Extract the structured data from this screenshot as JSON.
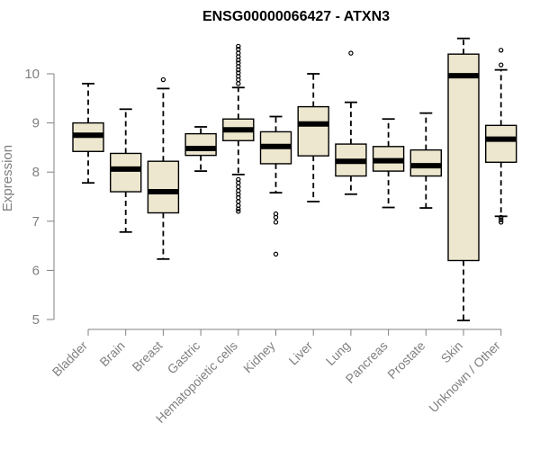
{
  "chart_data": {
    "type": "boxplot",
    "title": "ENSG00000066427 - ATXN3",
    "xlabel": "",
    "ylabel": "Expression",
    "ylim": [
      5,
      10.6
    ],
    "yticks": [
      5,
      6,
      7,
      8,
      9,
      10
    ],
    "box_color": "#ede7cf",
    "series": [
      {
        "name": "Bladder",
        "whisker_low": 7.78,
        "q1": 8.42,
        "median": 8.75,
        "q3": 9.0,
        "whisker_high": 9.8,
        "outliers": []
      },
      {
        "name": "Brain",
        "whisker_low": 6.78,
        "q1": 7.6,
        "median": 8.06,
        "q3": 8.38,
        "whisker_high": 9.28,
        "outliers": []
      },
      {
        "name": "Breast",
        "whisker_low": 6.23,
        "q1": 7.17,
        "median": 7.6,
        "q3": 8.22,
        "whisker_high": 9.7,
        "outliers": [
          9.88
        ]
      },
      {
        "name": "Gastric",
        "whisker_low": 8.02,
        "q1": 8.34,
        "median": 8.48,
        "q3": 8.78,
        "whisker_high": 8.92,
        "outliers": []
      },
      {
        "name": "Hematopoietic cells",
        "whisker_low": 7.95,
        "q1": 8.64,
        "median": 8.86,
        "q3": 9.08,
        "whisker_high": 9.72,
        "outliers": [
          7.2,
          7.25,
          7.32,
          7.4,
          7.48,
          7.55,
          7.62,
          7.7,
          7.78,
          7.85,
          9.8,
          9.88,
          9.95,
          10.02,
          10.08,
          10.15,
          10.22,
          10.28,
          10.35,
          10.42,
          10.5,
          10.56
        ]
      },
      {
        "name": "Kidney",
        "whisker_low": 7.58,
        "q1": 8.17,
        "median": 8.52,
        "q3": 8.82,
        "whisker_high": 9.13,
        "outliers": [
          6.33,
          6.98,
          7.08,
          7.15
        ]
      },
      {
        "name": "Liver",
        "whisker_low": 7.4,
        "q1": 8.33,
        "median": 8.98,
        "q3": 9.33,
        "whisker_high": 10.0,
        "outliers": []
      },
      {
        "name": "Lung",
        "whisker_low": 7.55,
        "q1": 7.92,
        "median": 8.22,
        "q3": 8.57,
        "whisker_high": 9.42,
        "outliers": [
          10.42
        ]
      },
      {
        "name": "Pancreas",
        "whisker_low": 7.28,
        "q1": 8.02,
        "median": 8.23,
        "q3": 8.52,
        "whisker_high": 9.08,
        "outliers": []
      },
      {
        "name": "Prostate",
        "whisker_low": 7.27,
        "q1": 7.92,
        "median": 8.13,
        "q3": 8.45,
        "whisker_high": 9.2,
        "outliers": []
      },
      {
        "name": "Skin",
        "whisker_low": 4.98,
        "q1": 6.2,
        "median": 9.96,
        "q3": 10.4,
        "whisker_high": 10.72,
        "outliers": []
      },
      {
        "name": "Unknown / Other",
        "whisker_low": 7.1,
        "q1": 8.2,
        "median": 8.67,
        "q3": 8.95,
        "whisker_high": 10.08,
        "outliers": [
          6.98,
          7.03,
          7.08,
          10.18,
          10.48
        ]
      }
    ]
  }
}
